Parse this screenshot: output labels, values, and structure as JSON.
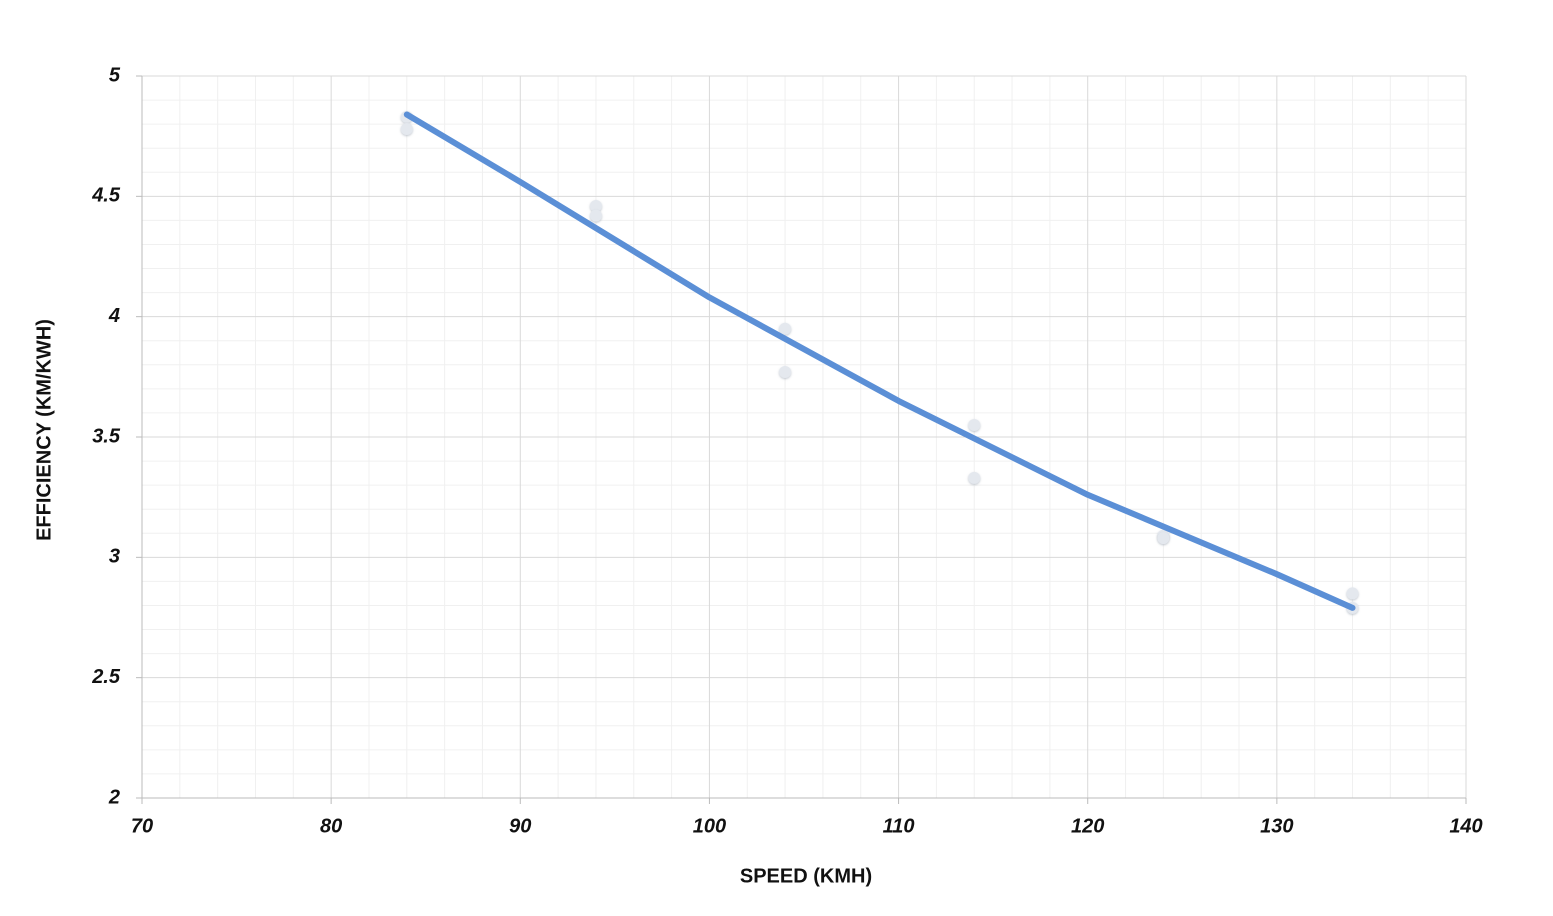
{
  "chart_data": {
    "type": "scatter",
    "xlabel": "SPEED (KMH)",
    "ylabel": "EFFICIENCY  (KM/KWH)",
    "xlim": [
      70,
      140
    ],
    "xticks": [
      70,
      80,
      90,
      100,
      110,
      120,
      130,
      140
    ],
    "ylim": [
      2,
      5
    ],
    "yticks": [
      2,
      2.5,
      3,
      3.5,
      4,
      4.5,
      5
    ],
    "grid": true,
    "minor_grid": 5,
    "series": [
      {
        "mode": "markers",
        "color": "#e4e8ee",
        "x": [
          84,
          84,
          94,
          94,
          104,
          104,
          114,
          114,
          124,
          124,
          134,
          134
        ],
        "values": [
          4.83,
          4.78,
          4.46,
          4.42,
          3.95,
          3.77,
          3.55,
          3.33,
          3.09,
          3.08,
          2.85,
          2.79
        ]
      },
      {
        "mode": "line",
        "color": "#5b8fd6",
        "x": [
          84,
          90,
          100,
          110,
          120,
          130,
          134
        ],
        "values": [
          4.84,
          4.56,
          4.08,
          3.65,
          3.26,
          2.93,
          2.79
        ]
      }
    ]
  }
}
